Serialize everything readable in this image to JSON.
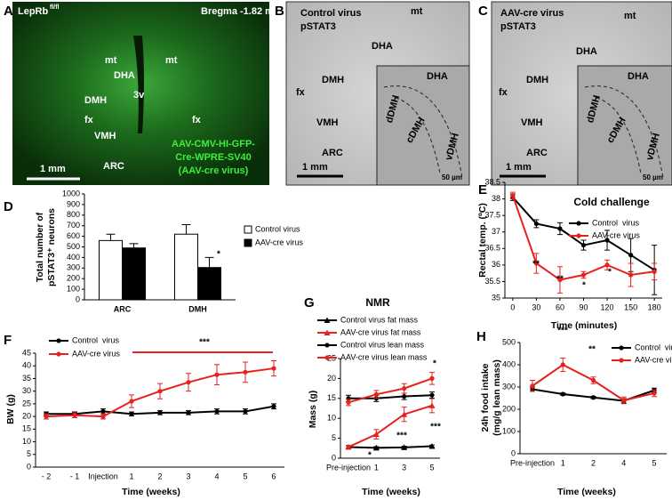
{
  "panel_letters": [
    "A",
    "B",
    "C",
    "D",
    "E",
    "F",
    "G",
    "H"
  ],
  "images": [
    {
      "labels": [
        "LepRb",
        "fl/fl",
        "Bregma -1.82 mm",
        "mt",
        "mt",
        "DHA",
        "DMH",
        "3v",
        "fx",
        "fx",
        "VMH",
        "ARC",
        "AAV-CMV-HI-GFP-",
        "Cre-WPRE-SV40",
        "(AAV-cre virus)",
        "1 mm"
      ]
    },
    {
      "labels": [
        "Control virus",
        "pSTAT3",
        "mt",
        "DHA",
        "DMH",
        "fx",
        "VMH",
        "ARC",
        "1 mm",
        "DHA",
        "dDMH",
        "cDMH",
        "vDMH",
        "50 µm"
      ]
    },
    {
      "labels": [
        "AAV-cre virus",
        "pSTAT3",
        "mt",
        "DHA",
        "DMH",
        "fx",
        "VMH",
        "ARC",
        "1 mm",
        "DHA",
        "dDMH",
        "cDMH",
        "vDMH",
        "50 µm"
      ]
    }
  ],
  "chart_data": [
    {
      "type": "bar",
      "ylabel": [
        "Total number of",
        "pSTAT3⁺ neurons"
      ],
      "categories": [
        "ARC",
        "DMH"
      ],
      "series": [
        {
          "name": "Control virus",
          "color": "#ffffff",
          "values": [
            560,
            620
          ],
          "errors": [
            60,
            90
          ]
        },
        {
          "name": "AAV-cre virus",
          "color": "#000000",
          "values": [
            490,
            305
          ],
          "errors": [
            40,
            95
          ]
        }
      ],
      "ylim": [
        0,
        1000
      ],
      "yticks": [
        0,
        100,
        200,
        300,
        400,
        500,
        600,
        700,
        800,
        900,
        1000
      ],
      "annotations": [
        "*"
      ]
    },
    {
      "type": "line",
      "title": "Cold challenge",
      "xlabel": "Time (minutes)",
      "ylabel": [
        "Rectal temp. (ºC)"
      ],
      "x": [
        0,
        30,
        60,
        90,
        120,
        150,
        180
      ],
      "xlim": [
        -10,
        190
      ],
      "xticks": [
        0,
        30,
        60,
        90,
        120,
        150,
        180
      ],
      "series": [
        {
          "name": "Control  virus",
          "color": "#000000",
          "marker": "circle",
          "values": [
            38.05,
            37.25,
            37.1,
            36.6,
            36.75,
            36.3,
            35.85
          ],
          "errors": [
            0.1,
            0.12,
            0.18,
            0.15,
            0.3,
            0.5,
            0.75
          ]
        },
        {
          "name": "AAV-cre virus",
          "color": "#e8201e",
          "marker": "circle",
          "values": [
            38.1,
            36.05,
            35.55,
            35.7,
            36,
            35.7,
            35.8
          ],
          "errors": [
            0.1,
            0.3,
            0.4,
            0.1,
            0.15,
            0.35,
            0.25
          ]
        }
      ],
      "ylim": [
        35,
        38.5
      ],
      "yticks": [
        35,
        35.5,
        36,
        36.5,
        37,
        37.5,
        38,
        38.5
      ],
      "annotations": [
        "**",
        "**",
        "*",
        "*"
      ]
    },
    {
      "type": "line",
      "xlabel": "Time (weeks)",
      "ylabel": [
        "BW (g)"
      ],
      "categories": [
        "- 2",
        "- 1",
        "Injection",
        "1",
        "2",
        "3",
        "4",
        "5",
        "6"
      ],
      "series": [
        {
          "name": "Control  virus",
          "color": "#000000",
          "marker": "circle",
          "values": [
            21,
            21,
            22,
            21,
            21.5,
            21.5,
            22,
            22,
            24
          ],
          "errors": [
            0.8,
            0.8,
            1,
            0.8,
            0.8,
            0.8,
            1,
            1,
            1
          ]
        },
        {
          "name": "AAV-cre virus",
          "color": "#e8201e",
          "marker": "circle",
          "values": [
            20,
            20.5,
            20,
            26,
            30,
            33.5,
            36.5,
            37.5,
            39
          ],
          "errors": [
            1,
            1,
            1,
            2.5,
            3,
            3.5,
            4,
            4,
            3
          ]
        }
      ],
      "ylim": [
        0,
        45
      ],
      "yticks": [
        0,
        5,
        10,
        15,
        20,
        25,
        30,
        35,
        40,
        45
      ],
      "annotations": [
        "***"
      ]
    },
    {
      "type": "line",
      "title": "NMR",
      "xlabel": "Time (weeks)",
      "ylabel": [
        "Mass (g)"
      ],
      "categories": [
        "Pre-injection",
        "1",
        "3",
        "5"
      ],
      "series": [
        {
          "name": "Control virus fat mass",
          "color": "#000000",
          "marker": "triangle",
          "values": [
            2.8,
            2.6,
            2.7,
            3
          ],
          "errors": [
            0.3,
            0.3,
            0.3,
            0.3
          ]
        },
        {
          "name": "AAV-cre virus fat mass",
          "color": "#e8201e",
          "marker": "triangle",
          "values": [
            2.8,
            6,
            11,
            13.2
          ],
          "errors": [
            0.4,
            1.2,
            1.8,
            1.8
          ]
        },
        {
          "name": "Control virus lean mass",
          "color": "#000000",
          "marker": "circle",
          "values": [
            15,
            15,
            15.5,
            15.8
          ],
          "errors": [
            0.8,
            0.8,
            0.8,
            0.8
          ]
        },
        {
          "name": "AAV-cre virus lean mass",
          "color": "#e8201e",
          "marker": "circle",
          "values": [
            14,
            16,
            17.5,
            20
          ],
          "errors": [
            0.8,
            1,
            1.2,
            1.5
          ]
        }
      ],
      "ylim": [
        0,
        25
      ],
      "yticks": [
        0,
        5,
        10,
        15,
        20,
        25
      ],
      "annotations": [
        "*",
        "***",
        "***",
        "*"
      ]
    },
    {
      "type": "line",
      "xlabel": "Time (weeks)",
      "ylabel": [
        "24h food intake",
        "(mg/g lean mass)"
      ],
      "categories": [
        "Pre-injection",
        "1",
        "2",
        "4",
        "5"
      ],
      "series": [
        {
          "name": "Control  virus",
          "color": "#000000",
          "marker": "circle",
          "values": [
            290,
            268,
            253,
            238,
            285
          ],
          "errors": [
            10,
            5,
            5,
            10,
            10
          ]
        },
        {
          "name": "AAV-cre virus",
          "color": "#e8201e",
          "marker": "circle",
          "values": [
            305,
            400,
            330,
            240,
            272
          ],
          "errors": [
            25,
            30,
            15,
            15,
            15
          ]
        }
      ],
      "ylim": [
        0,
        500
      ],
      "yticks": [
        0,
        100,
        200,
        300,
        400,
        500
      ],
      "annotations": [
        "***",
        "**"
      ]
    }
  ]
}
